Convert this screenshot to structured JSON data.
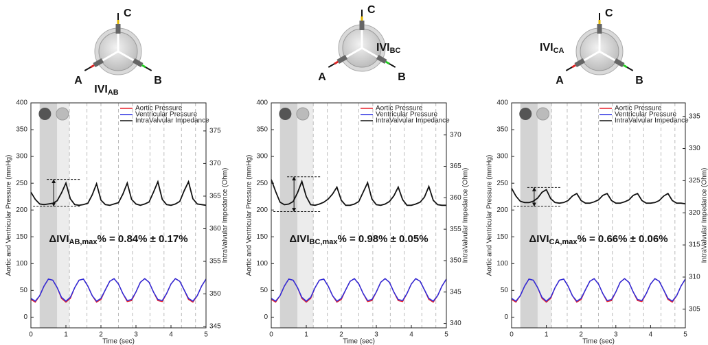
{
  "chart_data": [
    {
      "type": "line",
      "xlabel": "Time (sec)",
      "ylabel": "Aortic and Ventricular Pressure (mmHg)",
      "y2label": "IntraValvular Impedance (Ohm)",
      "xlim": [
        0,
        5
      ],
      "xticks": [
        0,
        1,
        2,
        3,
        4,
        5
      ],
      "ylim": [
        -20,
        400
      ],
      "yticks": [
        0,
        50,
        100,
        150,
        200,
        250,
        300,
        350,
        400
      ],
      "y2lim": [
        344.8,
        379.3
      ],
      "y2ticks": [
        345,
        350,
        355,
        360,
        365,
        370,
        375
      ],
      "legend": "upper right",
      "x": [
        0,
        0.125,
        0.25,
        0.375,
        0.5,
        0.625,
        0.75,
        0.875,
        1,
        1.125,
        1.25,
        1.375,
        1.5,
        1.625,
        1.75,
        1.875,
        2,
        2.125,
        2.25,
        2.375,
        2.5,
        2.625,
        2.75,
        2.875,
        3,
        3.125,
        3.25,
        3.375,
        3.5,
        3.625,
        3.75,
        3.875,
        4,
        4.125,
        4.25,
        4.375,
        4.5,
        4.625,
        4.75,
        4.875,
        5
      ],
      "series": [
        {
          "name": "Aortic Pressure",
          "color": "#e8202a",
          "values": [
            33,
            28,
            40,
            58,
            71,
            69,
            55,
            35,
            28,
            35,
            55,
            69,
            71,
            58,
            40,
            28,
            33,
            51,
            67,
            72,
            62,
            44,
            29,
            31,
            47,
            65,
            72,
            65,
            47,
            31,
            29,
            44,
            62,
            72,
            67,
            51,
            33,
            28,
            40,
            58,
            71
          ]
        },
        {
          "name": "Ventricular Pressure",
          "color": "#2a2ee0",
          "values": [
            35,
            30,
            40,
            58,
            71,
            69,
            55,
            37,
            30,
            37,
            55,
            69,
            71,
            58,
            40,
            30,
            35,
            51,
            67,
            72,
            62,
            44,
            31,
            33,
            47,
            65,
            72,
            65,
            47,
            33,
            31,
            44,
            62,
            72,
            67,
            51,
            35,
            30,
            40,
            58,
            71
          ]
        },
        {
          "name": "IntraValvular Impedance",
          "color": "#111111",
          "axis": "y2",
          "values": [
            365.6,
            364.5,
            363.8,
            363.7,
            363.8,
            363.9,
            364.3,
            365.5,
            367.0,
            364.6,
            363.7,
            363.6,
            363.7,
            363.9,
            365.2,
            366.9,
            364.4,
            363.7,
            363.6,
            363.8,
            364.0,
            365.3,
            367.0,
            364.5,
            363.8,
            363.6,
            363.8,
            364.1,
            365.6,
            367.2,
            364.5,
            363.7,
            363.6,
            363.8,
            364.2,
            365.8,
            367.2,
            364.6,
            363.8,
            363.7,
            363.6
          ]
        }
      ],
      "shaded_regions": [
        {
          "from": 0.25,
          "to": 0.75,
          "color": "#d3d3d3"
        },
        {
          "from": 0.75,
          "to": 1.1,
          "color": "#ececec"
        }
      ],
      "vlines": [
        1.1,
        1.6,
        2.0,
        2.5,
        2.9,
        3.4,
        3.8,
        4.3,
        4.7
      ],
      "measure": {
        "x": 0.65,
        "low": 207,
        "high": 257
      },
      "annotation": {
        "prefix": "ΔIVI",
        "sub": "AB,max",
        "suffix": "% = 0.84% ± 0.17%"
      },
      "diagram": {
        "a": "A",
        "b": "B",
        "c": "C",
        "ivi": "IVI",
        "ivi_sub": "AB"
      }
    },
    {
      "type": "line",
      "xlabel": "Time (sec)",
      "ylabel": "Aortic and Ventricular Pressure (mmHg)",
      "y2label": "IntraValvular Impedance (Ohm)",
      "xlim": [
        0,
        5
      ],
      "xticks": [
        0,
        1,
        2,
        3,
        4,
        5
      ],
      "ylim": [
        -20,
        400
      ],
      "yticks": [
        0,
        50,
        100,
        150,
        200,
        250,
        300,
        350,
        400
      ],
      "y2lim": [
        339.3,
        375.1
      ],
      "y2ticks": [
        340,
        345,
        350,
        355,
        360,
        365,
        370
      ],
      "legend": "upper right",
      "x": [
        0,
        0.125,
        0.25,
        0.375,
        0.5,
        0.625,
        0.75,
        0.875,
        1,
        1.125,
        1.25,
        1.375,
        1.5,
        1.625,
        1.75,
        1.875,
        2,
        2.125,
        2.25,
        2.375,
        2.5,
        2.625,
        2.75,
        2.875,
        3,
        3.125,
        3.25,
        3.375,
        3.5,
        3.625,
        3.75,
        3.875,
        4,
        4.125,
        4.25,
        4.375,
        4.5,
        4.625,
        4.75,
        4.875,
        5
      ],
      "series": [
        {
          "name": "Aortic Pressure",
          "color": "#e8202a",
          "values": [
            33,
            28,
            40,
            58,
            71,
            69,
            55,
            35,
            28,
            35,
            55,
            69,
            71,
            58,
            40,
            28,
            33,
            51,
            67,
            72,
            62,
            44,
            29,
            31,
            47,
            65,
            72,
            65,
            47,
            31,
            29,
            44,
            62,
            72,
            67,
            51,
            33,
            28,
            40,
            58,
            71
          ]
        },
        {
          "name": "Ventricular Pressure",
          "color": "#2a2ee0",
          "values": [
            35,
            30,
            40,
            58,
            71,
            69,
            55,
            37,
            30,
            37,
            55,
            69,
            71,
            58,
            40,
            30,
            35,
            51,
            67,
            72,
            62,
            44,
            31,
            33,
            47,
            65,
            72,
            65,
            47,
            33,
            31,
            44,
            62,
            72,
            67,
            51,
            35,
            30,
            40,
            58,
            71
          ]
        },
        {
          "name": "IntraValvular Impedance",
          "color": "#111111",
          "axis": "y2",
          "values": [
            362.9,
            361.0,
            359.3,
            358.9,
            359.0,
            359.4,
            360.8,
            362.6,
            360.2,
            358.9,
            358.8,
            359.0,
            359.3,
            359.8,
            360.6,
            361.7,
            359.6,
            358.8,
            358.8,
            359.0,
            359.4,
            360.9,
            362.4,
            359.8,
            358.9,
            358.8,
            359.0,
            359.4,
            360.3,
            361.7,
            359.7,
            358.8,
            358.8,
            359.0,
            359.3,
            360.1,
            361.8,
            359.6,
            358.9,
            358.8,
            358.8
          ]
        }
      ],
      "shaded_regions": [
        {
          "from": 0.25,
          "to": 0.75,
          "color": "#d3d3d3"
        },
        {
          "from": 0.75,
          "to": 1.2,
          "color": "#ececec"
        }
      ],
      "vlines": [
        1.2,
        1.6,
        2.0,
        2.5,
        2.9,
        3.4,
        3.8,
        4.3,
        4.7
      ],
      "measure": {
        "x": 0.65,
        "low": 197,
        "high": 262
      },
      "annotation": {
        "prefix": "ΔIVI",
        "sub": "BC,max",
        "suffix": "% = 0.98% ± 0.05%"
      },
      "diagram": {
        "a": "A",
        "b": "B",
        "c": "C",
        "ivi": "IVI",
        "ivi_sub": "BC"
      }
    },
    {
      "type": "line",
      "xlabel": "Time (sec)",
      "ylabel": "Aortic and Ventricular Pressure (mmHg)",
      "y2label": "IntraValvular Impedance (Ohm)",
      "xlim": [
        0,
        5
      ],
      "xticks": [
        0,
        1,
        2,
        3,
        4,
        5
      ],
      "ylim": [
        -20,
        400
      ],
      "yticks": [
        0,
        50,
        100,
        150,
        200,
        250,
        300,
        350,
        400
      ],
      "y2lim": [
        302.1,
        337.1
      ],
      "y2ticks": [
        305,
        310,
        315,
        320,
        325,
        330,
        335
      ],
      "legend": "upper right",
      "x": [
        0,
        0.125,
        0.25,
        0.375,
        0.5,
        0.625,
        0.75,
        0.875,
        1,
        1.125,
        1.25,
        1.375,
        1.5,
        1.625,
        1.75,
        1.875,
        2,
        2.125,
        2.25,
        2.375,
        2.5,
        2.625,
        2.75,
        2.875,
        3,
        3.125,
        3.25,
        3.375,
        3.5,
        3.625,
        3.75,
        3.875,
        4,
        4.125,
        4.25,
        4.375,
        4.5,
        4.625,
        4.75,
        4.875,
        5
      ],
      "series": [
        {
          "name": "Aortic Pressure",
          "color": "#e8202a",
          "values": [
            33,
            28,
            40,
            58,
            71,
            69,
            55,
            35,
            28,
            35,
            55,
            69,
            71,
            58,
            40,
            28,
            33,
            51,
            67,
            72,
            62,
            44,
            29,
            31,
            47,
            65,
            72,
            65,
            47,
            31,
            29,
            44,
            62,
            72,
            67,
            51,
            33,
            28,
            40,
            58,
            71
          ]
        },
        {
          "name": "Ventricular Pressure",
          "color": "#2a2ee0",
          "values": [
            35,
            30,
            40,
            58,
            71,
            69,
            55,
            37,
            30,
            37,
            55,
            69,
            71,
            58,
            40,
            30,
            35,
            51,
            67,
            72,
            62,
            44,
            31,
            33,
            47,
            65,
            72,
            65,
            47,
            33,
            31,
            44,
            62,
            72,
            67,
            51,
            35,
            30,
            40,
            58,
            71
          ]
        },
        {
          "name": "IntraValvular Impedance",
          "color": "#111111",
          "axis": "y2",
          "values": [
            323.8,
            322.6,
            321.8,
            321.6,
            321.6,
            321.8,
            322.3,
            323.2,
            323.6,
            322.2,
            321.6,
            321.5,
            321.6,
            321.9,
            322.6,
            323.0,
            321.9,
            321.5,
            321.5,
            321.7,
            322.0,
            322.7,
            323.0,
            321.9,
            321.5,
            321.5,
            321.7,
            322.0,
            322.7,
            323.0,
            321.9,
            321.5,
            321.5,
            321.6,
            321.9,
            322.6,
            323.0,
            321.9,
            321.5,
            321.5,
            321.4
          ]
        }
      ],
      "shaded_regions": [
        {
          "from": 0.25,
          "to": 0.75,
          "color": "#d3d3d3"
        },
        {
          "from": 0.75,
          "to": 1.15,
          "color": "#ececec"
        }
      ],
      "vlines": [
        1.15,
        1.6,
        2.0,
        2.5,
        2.9,
        3.4,
        3.8,
        4.3,
        4.7
      ],
      "measure": {
        "x": 0.65,
        "low": 207,
        "high": 242
      },
      "annotation": {
        "prefix": "ΔIVI",
        "sub": "CA,max",
        "suffix": "% = 0.66% ± 0.06%"
      },
      "diagram": {
        "a": "A",
        "b": "B",
        "c": "C",
        "ivi": "IVI",
        "ivi_sub": "CA"
      }
    }
  ]
}
